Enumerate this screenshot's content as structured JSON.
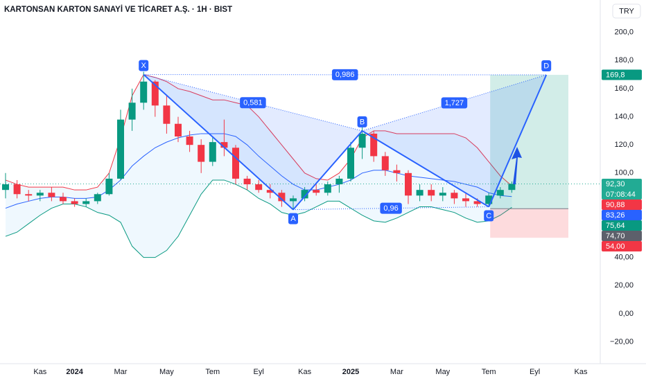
{
  "chart_data": {
    "type": "candlestick",
    "title": "KARTONSAN KARTON SANAYİ VE TİCARET A.Ş. · 1H · BIST",
    "currency": "TRY",
    "categories": [
      null,
      null,
      null,
      "Kas",
      null,
      null,
      "2024",
      null,
      null,
      null,
      "Mar",
      null,
      null,
      null,
      "May",
      null,
      null,
      null,
      "Tem",
      null,
      null,
      null,
      "Eyl",
      null,
      null,
      null,
      "Kas",
      null,
      null,
      null,
      "2025",
      null,
      null,
      null,
      "Mar",
      null,
      null,
      null,
      "May",
      null,
      null,
      null,
      "Tem",
      null,
      null,
      null,
      "Eyl",
      null,
      null,
      null,
      "Kas",
      null
    ],
    "open": [
      88,
      92,
      85,
      84,
      86,
      83,
      80,
      78,
      80,
      85,
      96,
      138,
      150,
      165,
      148,
      135,
      126,
      120,
      108,
      122,
      118,
      96,
      92,
      88,
      86,
      80,
      82,
      88,
      86,
      92,
      96,
      118,
      128,
      112,
      102,
      100,
      84,
      88,
      84,
      86,
      82,
      80,
      78,
      84,
      88,
      null,
      null,
      null,
      null,
      null,
      null,
      null
    ],
    "high": [
      100,
      95,
      88,
      88,
      90,
      86,
      82,
      82,
      86,
      100,
      145,
      160,
      172,
      166,
      155,
      140,
      130,
      124,
      126,
      138,
      120,
      98,
      95,
      92,
      88,
      84,
      90,
      92,
      94,
      98,
      122,
      135,
      130,
      115,
      106,
      102,
      92,
      92,
      90,
      88,
      86,
      82,
      86,
      90,
      94,
      null,
      null,
      null,
      null,
      null,
      null,
      null
    ],
    "low": [
      82,
      82,
      80,
      80,
      80,
      78,
      76,
      76,
      78,
      84,
      95,
      130,
      145,
      140,
      128,
      122,
      115,
      100,
      105,
      112,
      92,
      88,
      86,
      82,
      76,
      74,
      80,
      84,
      84,
      86,
      94,
      110,
      108,
      98,
      94,
      78,
      80,
      80,
      80,
      78,
      76,
      76,
      76,
      82,
      86,
      null,
      null,
      null,
      null,
      null,
      null,
      null
    ],
    "close": [
      92,
      85,
      84,
      86,
      83,
      80,
      78,
      80,
      85,
      96,
      138,
      150,
      165,
      148,
      135,
      126,
      120,
      108,
      122,
      118,
      96,
      92,
      88,
      86,
      80,
      82,
      88,
      86,
      92,
      96,
      118,
      128,
      112,
      102,
      100,
      84,
      88,
      84,
      86,
      82,
      80,
      78,
      84,
      88,
      92.3,
      null,
      null,
      null,
      null,
      null,
      null,
      null
    ],
    "up_color": "#089981",
    "down_color": "#f23645",
    "bands": {
      "upper": {
        "color": "#f23645",
        "values": [
          95,
          92,
          90,
          90,
          90,
          90,
          88,
          88,
          90,
          100,
          125,
          155,
          170,
          168,
          165,
          160,
          158,
          155,
          152,
          152,
          150,
          148,
          140,
          130,
          120,
          110,
          100,
          96,
          95,
          100,
          110,
          125,
          130,
          130,
          128,
          128,
          128,
          128,
          128,
          128,
          125,
          118,
          108,
          98,
          90.88,
          null,
          null,
          null,
          null,
          null,
          null,
          null
        ]
      },
      "middle": {
        "color": "#2962ff",
        "values": [
          75,
          78,
          80,
          82,
          83,
          83,
          82,
          82,
          83,
          88,
          95,
          105,
          112,
          118,
          122,
          125,
          127,
          128,
          128,
          128,
          126,
          120,
          112,
          105,
          98,
          92,
          88,
          88,
          90,
          92,
          95,
          100,
          102,
          102,
          100,
          98,
          97,
          96,
          95,
          94,
          92,
          90,
          86,
          84,
          83.26,
          null,
          null,
          null,
          null,
          null,
          null,
          null
        ]
      },
      "lower": {
        "color": "#089981",
        "values": [
          55,
          58,
          64,
          70,
          75,
          78,
          78,
          76,
          72,
          70,
          65,
          48,
          40,
          40,
          45,
          55,
          70,
          85,
          95,
          95,
          92,
          88,
          82,
          78,
          72,
          70,
          72,
          76,
          80,
          80,
          75,
          70,
          66,
          65,
          68,
          72,
          76,
          76,
          74,
          72,
          68,
          65,
          66,
          70,
          75.64,
          null,
          null,
          null,
          null,
          null,
          null,
          null
        ]
      }
    },
    "pattern": {
      "color": "#2962ff",
      "values": [
        null,
        null,
        null,
        null,
        null,
        null,
        null,
        null,
        null,
        null,
        null,
        null,
        170,
        null,
        null,
        null,
        null,
        null,
        null,
        null,
        null,
        null,
        null,
        null,
        null,
        74,
        null,
        null,
        null,
        null,
        null,
        130,
        null,
        null,
        null,
        null,
        null,
        null,
        null,
        null,
        null,
        null,
        76,
        null,
        null,
        null,
        null,
        169.8,
        null,
        null,
        null,
        null
      ],
      "point_labels": [
        null,
        null,
        null,
        null,
        null,
        null,
        null,
        null,
        null,
        null,
        null,
        null,
        "X",
        null,
        null,
        null,
        null,
        null,
        null,
        null,
        null,
        null,
        null,
        null,
        null,
        "A",
        null,
        null,
        null,
        null,
        null,
        "B",
        null,
        null,
        null,
        null,
        null,
        null,
        null,
        null,
        null,
        null,
        "C",
        null,
        null,
        null,
        null,
        "D",
        null,
        null,
        null,
        null
      ],
      "ratio_labels": [
        "0,581",
        "0,986",
        "1,727",
        "0,96"
      ]
    },
    "position": {
      "target": {
        "value": 169.8,
        "label": "169,8",
        "color": "#089981"
      },
      "entry": {
        "value": 74.7,
        "label": "74,70",
        "color": "#5d606b"
      },
      "stop": {
        "value": 54.0,
        "label": "54,00",
        "color": "#f23645"
      }
    },
    "price_labels": [
      {
        "value": 92.3,
        "label": "92,30",
        "sublabel": "07:08:44",
        "color": "#22ab94"
      },
      {
        "value": 90.88,
        "label": "90,88",
        "color": "#f23645"
      },
      {
        "value": 83.26,
        "label": "83,26",
        "color": "#2962ff"
      },
      {
        "value": 75.64,
        "label": "75,64",
        "color": "#089981"
      }
    ],
    "ylim": [
      -35.5,
      223
    ],
    "yticks": [
      {
        "value": 200,
        "label": "200,0"
      },
      {
        "value": 180,
        "label": "180,0"
      },
      {
        "value": 160,
        "label": "160,0"
      },
      {
        "value": 140,
        "label": "140,0"
      },
      {
        "value": 120,
        "label": "120,0"
      },
      {
        "value": 100,
        "label": "100,0"
      },
      {
        "value": 40,
        "label": "40,00"
      },
      {
        "value": 20,
        "label": "20,00"
      },
      {
        "value": 0,
        "label": "0,00"
      },
      {
        "value": -20,
        "label": "−20,00"
      }
    ],
    "grid": false
  }
}
